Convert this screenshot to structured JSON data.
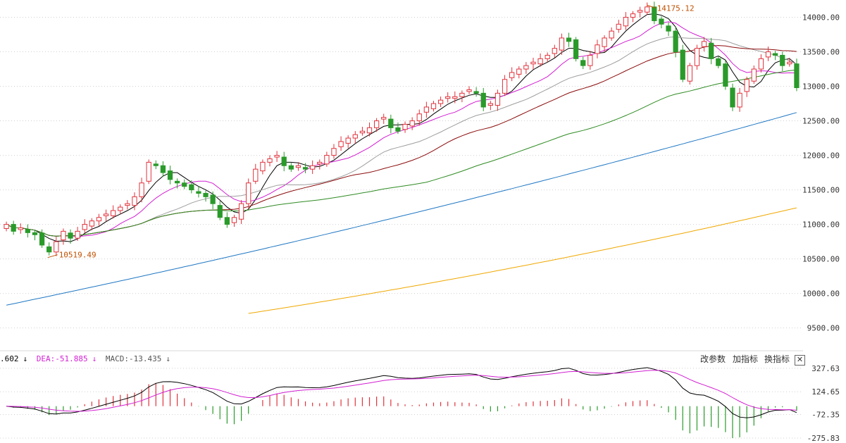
{
  "chart_data": [
    {
      "type": "candlestick",
      "panel": "price",
      "ylim": [
        9200,
        14230
      ],
      "yticks": [
        "14000.00",
        "13500.00",
        "13000.00",
        "12500.00",
        "12000.00",
        "11500.00",
        "11000.00",
        "10500.00",
        "10000.00",
        "9500.00"
      ],
      "ytick_values": [
        14000,
        13500,
        13000,
        12500,
        12000,
        11500,
        11000,
        10500,
        10000,
        9500
      ],
      "grid": true,
      "bar_count": 112,
      "closes": [
        11000,
        10900,
        10950,
        10880,
        10850,
        10700,
        10600,
        10750,
        10900,
        10800,
        10900,
        11000,
        11050,
        11100,
        11150,
        11200,
        11250,
        11300,
        11400,
        11600,
        11900,
        11850,
        11750,
        11650,
        11600,
        11550,
        11500,
        11450,
        11400,
        11300,
        11100,
        11000,
        11100,
        11300,
        11600,
        11800,
        11900,
        11950,
        12000,
        11850,
        11800,
        11850,
        11800,
        11850,
        11900,
        12000,
        12100,
        12200,
        12250,
        12300,
        12350,
        12400,
        12500,
        12550,
        12400,
        12350,
        12450,
        12500,
        12600,
        12700,
        12750,
        12800,
        12850,
        12850,
        12900,
        12950,
        12900,
        12700,
        12750,
        12900,
        13100,
        13200,
        13250,
        13300,
        13350,
        13400,
        13450,
        13550,
        13700,
        13650,
        13400,
        13300,
        13450,
        13600,
        13700,
        13800,
        13900,
        14000,
        14050,
        14100,
        14150,
        13950,
        13900,
        13800,
        13500,
        13100,
        13300,
        13550,
        13650,
        13400,
        13300,
        13000,
        12700,
        12900,
        13100,
        13250,
        13400,
        13500,
        13450,
        13300,
        13350,
        12980
      ],
      "high_annotation": "14175.12",
      "low_annotation": "10519.49",
      "moving_averages": [
        {
          "name": "MA5",
          "color": "#000000"
        },
        {
          "name": "MA10",
          "color": "#d21fd2"
        },
        {
          "name": "MA20",
          "color": "#9e9e9e"
        },
        {
          "name": "MA30",
          "color": "#8b0a0a"
        },
        {
          "name": "MA60",
          "color": "#2e8b22"
        },
        {
          "name": "MA120",
          "color": "#1f77c4"
        },
        {
          "name": "MA250",
          "color": "#f0a800"
        }
      ],
      "ma120_range": [
        9830,
        12620
      ],
      "ma250_range": [
        9710,
        11240
      ],
      "up_color": "#e0323c",
      "down_color": "#2a9a2a"
    },
    {
      "type": "macd",
      "panel": "indicator",
      "ylim": [
        -300,
        345
      ],
      "yticks": [
        "327.63",
        "124.65",
        "-72.35",
        "-275.83"
      ],
      "ytick_values": [
        327.63,
        124.65,
        -72.35,
        -275.83
      ],
      "dif_label": ".602",
      "dea_label": "DEA:-51.885",
      "macd_label": "MACD:-13.435",
      "dif_color": "#000000",
      "dea_color": "#d21fd2",
      "bar_up_color": "#e0323c",
      "bar_down_color": "#2a9a2a"
    }
  ],
  "toolbar": {
    "change_params": "改参数",
    "add_indicator": "加指标",
    "switch_indicator": "换指标",
    "close": "✕"
  },
  "indicator_arrows": {
    "dif": "↓",
    "dea": "↓",
    "macd": "↓"
  }
}
